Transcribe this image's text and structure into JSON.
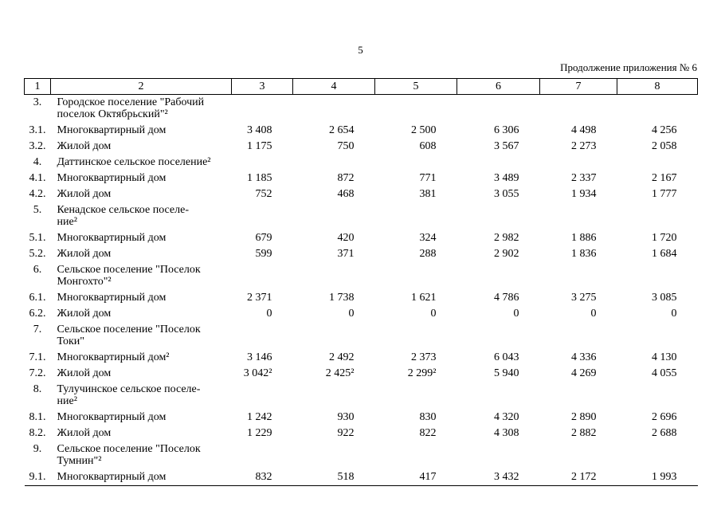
{
  "page": {
    "number": "5",
    "continuation_label": "Продолжение приложения № 6"
  },
  "table": {
    "column_headers": [
      "1",
      "2",
      "3",
      "4",
      "5",
      "6",
      "7",
      "8"
    ],
    "rows": [
      {
        "num": "3.",
        "name": "Городское поселение \"Рабочий\nпоселок Октябрьский\"²",
        "values": [
          "",
          "",
          "",
          "",
          "",
          ""
        ]
      },
      {
        "num": "3.1.",
        "name": "Многоквартирный дом",
        "values": [
          "3 408",
          "2 654",
          "2 500",
          "6 306",
          "4 498",
          "4 256"
        ]
      },
      {
        "num": "3.2.",
        "name": "Жилой дом",
        "values": [
          "1 175",
          "750",
          "608",
          "3 567",
          "2 273",
          "2 058"
        ]
      },
      {
        "num": "4.",
        "name": "Даттинское сельское поселение²",
        "values": [
          "",
          "",
          "",
          "",
          "",
          ""
        ]
      },
      {
        "num": "4.1.",
        "name": "Многоквартирный дом",
        "values": [
          "1 185",
          "872",
          "771",
          "3 489",
          "2 337",
          "2 167"
        ]
      },
      {
        "num": "4.2.",
        "name": "Жилой дом",
        "values": [
          "752",
          "468",
          "381",
          "3 055",
          "1 934",
          "1 777"
        ]
      },
      {
        "num": "5.",
        "name": "Кенадское сельское поселе-\nние²",
        "values": [
          "",
          "",
          "",
          "",
          "",
          ""
        ]
      },
      {
        "num": "5.1.",
        "name": "Многоквартирный дом",
        "values": [
          "679",
          "420",
          "324",
          "2 982",
          "1 886",
          "1 720"
        ]
      },
      {
        "num": "5.2.",
        "name": "Жилой дом",
        "values": [
          "599",
          "371",
          "288",
          "2 902",
          "1 836",
          "1 684"
        ]
      },
      {
        "num": "6.",
        "name": "Сельское поселение \"Поселок\nМонгохто\"²",
        "values": [
          "",
          "",
          "",
          "",
          "",
          ""
        ]
      },
      {
        "num": "6.1.",
        "name": "Многоквартирный дом",
        "values": [
          "2 371",
          "1 738",
          "1 621",
          "4 786",
          "3 275",
          "3 085"
        ]
      },
      {
        "num": "6.2.",
        "name": "Жилой дом",
        "values": [
          "0",
          "0",
          "0",
          "0",
          "0",
          "0"
        ]
      },
      {
        "num": "7.",
        "name": "Сельское поселение \"Поселок\nТоки\"",
        "values": [
          "",
          "",
          "",
          "",
          "",
          ""
        ]
      },
      {
        "num": "7.1.",
        "name": "Многоквартирный дом²",
        "values": [
          "3 146",
          "2 492",
          "2 373",
          "6 043",
          "4 336",
          "4 130"
        ]
      },
      {
        "num": "7.2.",
        "name": "Жилой дом",
        "values": [
          "3 042²",
          "2 425²",
          "2 299²",
          "5 940",
          "4 269",
          "4 055"
        ]
      },
      {
        "num": "8.",
        "name": "Тулучинское сельское поселе-\nние²",
        "values": [
          "",
          "",
          "",
          "",
          "",
          ""
        ]
      },
      {
        "num": "8.1.",
        "name": "Многоквартирный дом",
        "values": [
          "1 242",
          "930",
          "830",
          "4 320",
          "2 890",
          "2 696"
        ]
      },
      {
        "num": "8.2.",
        "name": "Жилой дом",
        "values": [
          "1 229",
          "922",
          "822",
          "4 308",
          "2 882",
          "2 688"
        ]
      },
      {
        "num": "9.",
        "name": "Сельское поселение \"Поселок\nТумнин\"²",
        "values": [
          "",
          "",
          "",
          "",
          "",
          ""
        ]
      },
      {
        "num": "9.1.",
        "name": "Многоквартирный дом",
        "values": [
          "832",
          "518",
          "417",
          "3 432",
          "2 172",
          "1 993"
        ]
      }
    ]
  }
}
